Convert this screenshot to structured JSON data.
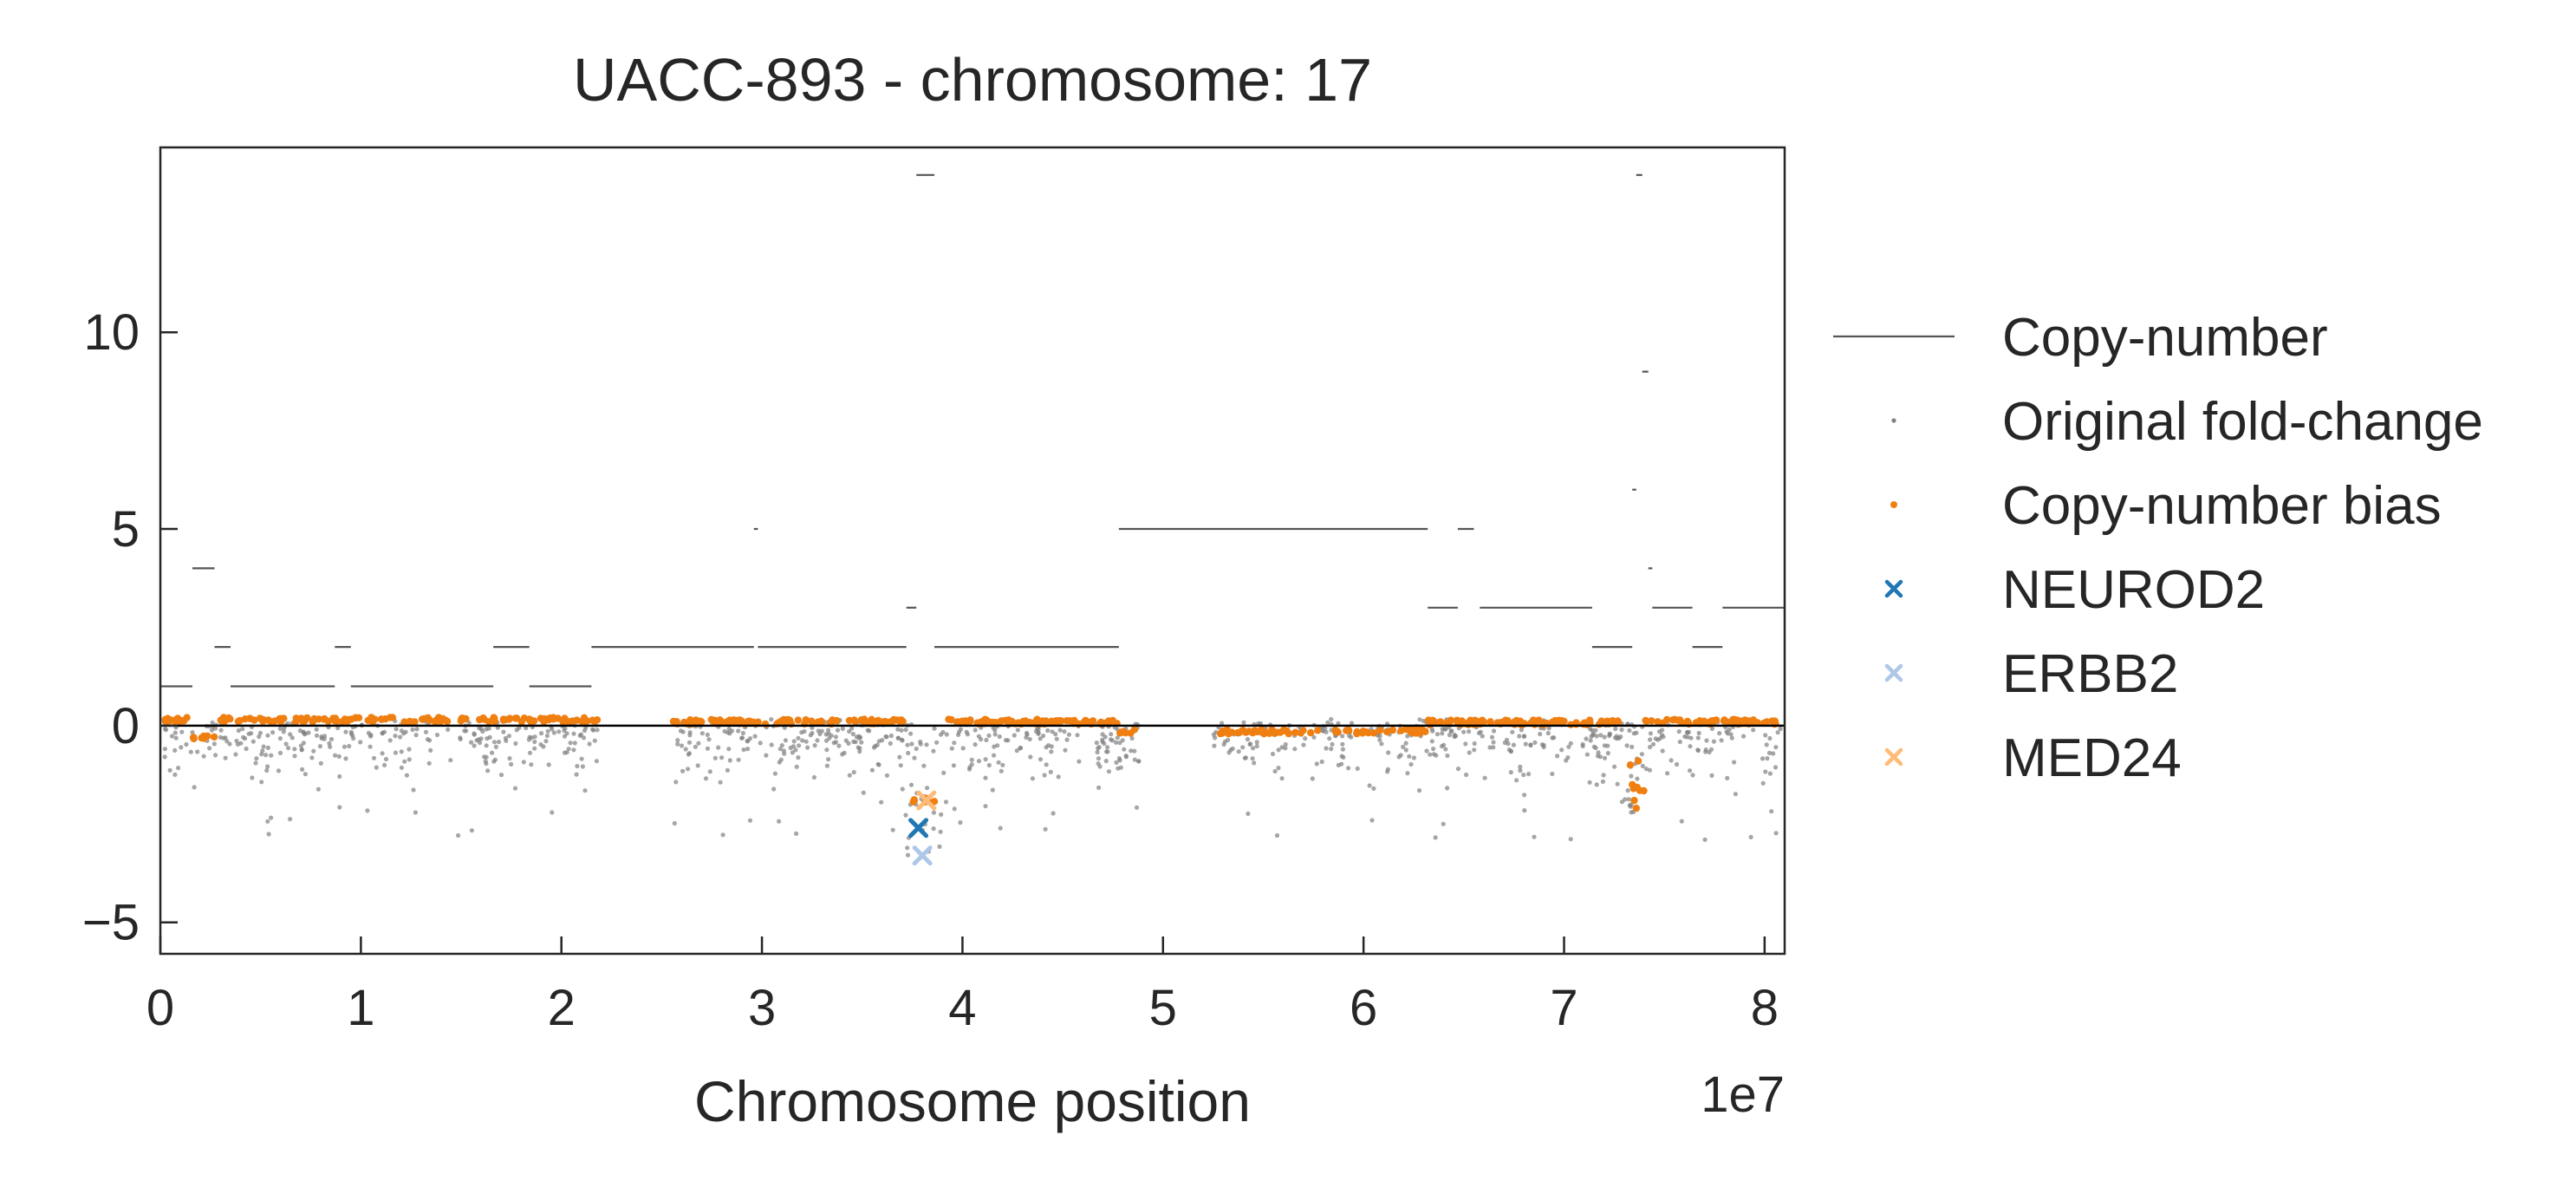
{
  "chart_data": {
    "type": "scatter",
    "title": "UACC-893 - chromosome: 17",
    "xlabel": "Chromosome position",
    "ylabel": "",
    "x_offset_label": "1e7",
    "x_scale": 10000000,
    "xlim": [
      0,
      8.1
    ],
    "ylim": [
      -5.8,
      14.7
    ],
    "x_ticks": [
      0,
      1,
      2,
      3,
      4,
      5,
      6,
      7,
      8
    ],
    "x_tick_labels": [
      "0",
      "1",
      "2",
      "3",
      "4",
      "5",
      "6",
      "7",
      "8"
    ],
    "y_ticks": [
      -5,
      0,
      5,
      10
    ],
    "y_tick_labels": [
      "−5",
      "0",
      "5",
      "10"
    ],
    "grid": false,
    "zero_line": 0,
    "legend_position": "outside-right",
    "colors": {
      "copy_number": "#555555",
      "original_fold_change": "#808080",
      "bias": "#f07f12",
      "NEUROD2": "#1f77b4",
      "ERBB2": "#aec7e8",
      "MED24": "#ffbb78",
      "zero_line": "#000000"
    },
    "legend": [
      {
        "label": "Copy-number",
        "marker": "line",
        "color": "#555555"
      },
      {
        "label": "Original fold-change",
        "marker": "dot",
        "color": "#808080"
      },
      {
        "label": "Copy-number bias",
        "marker": "dot",
        "color": "#f07f12"
      },
      {
        "label": "NEUROD2",
        "marker": "x",
        "color": "#1f77b4"
      },
      {
        "label": "ERBB2",
        "marker": "x",
        "color": "#aec7e8"
      },
      {
        "label": "MED24",
        "marker": "x",
        "color": "#ffbb78"
      }
    ],
    "copy_number_segments": [
      {
        "x0": 0.0,
        "x1": 0.16,
        "cn": 1
      },
      {
        "x0": 0.16,
        "x1": 0.27,
        "cn": 4
      },
      {
        "x0": 0.27,
        "x1": 0.35,
        "cn": 2
      },
      {
        "x0": 0.35,
        "x1": 0.87,
        "cn": 1
      },
      {
        "x0": 0.87,
        "x1": 0.95,
        "cn": 2
      },
      {
        "x0": 0.95,
        "x1": 1.66,
        "cn": 1
      },
      {
        "x0": 1.66,
        "x1": 1.84,
        "cn": 2
      },
      {
        "x0": 1.84,
        "x1": 2.15,
        "cn": 1
      },
      {
        "x0": 2.15,
        "x1": 2.96,
        "cn": 2
      },
      {
        "x0": 2.96,
        "x1": 2.98,
        "cn": 5
      },
      {
        "x0": 2.98,
        "x1": 3.72,
        "cn": 2
      },
      {
        "x0": 3.72,
        "x1": 3.77,
        "cn": 3
      },
      {
        "x0": 3.77,
        "x1": 3.86,
        "cn": 14
      },
      {
        "x0": 3.86,
        "x1": 4.78,
        "cn": 2
      },
      {
        "x0": 4.78,
        "x1": 6.32,
        "cn": 5
      },
      {
        "x0": 6.32,
        "x1": 6.47,
        "cn": 3
      },
      {
        "x0": 6.47,
        "x1": 6.55,
        "cn": 5
      },
      {
        "x0": 6.58,
        "x1": 7.14,
        "cn": 3
      },
      {
        "x0": 7.14,
        "x1": 7.34,
        "cn": 2
      },
      {
        "x0": 7.34,
        "x1": 7.36,
        "cn": 6
      },
      {
        "x0": 7.36,
        "x1": 7.39,
        "cn": 14
      },
      {
        "x0": 7.39,
        "x1": 7.42,
        "cn": 9
      },
      {
        "x0": 7.42,
        "x1": 7.44,
        "cn": 4
      },
      {
        "x0": 7.44,
        "x1": 7.64,
        "cn": 3
      },
      {
        "x0": 7.64,
        "x1": 7.79,
        "cn": 2
      },
      {
        "x0": 7.79,
        "x1": 8.1,
        "cn": 3
      }
    ],
    "highlighted_genes": [
      {
        "name": "NEUROD2",
        "x": 3.78,
        "y": -2.6
      },
      {
        "name": "ERBB2",
        "x": 3.8,
        "y": -3.3
      },
      {
        "name": "MED24",
        "x": 3.82,
        "y": -1.9
      }
    ],
    "point_clusters_note": "Dense clusters of gray fold-change dots and orange bias dots along y=0 across the chromosome; bias dips near x=3.8 (about -2) and x=7.35 (about -2)."
  }
}
